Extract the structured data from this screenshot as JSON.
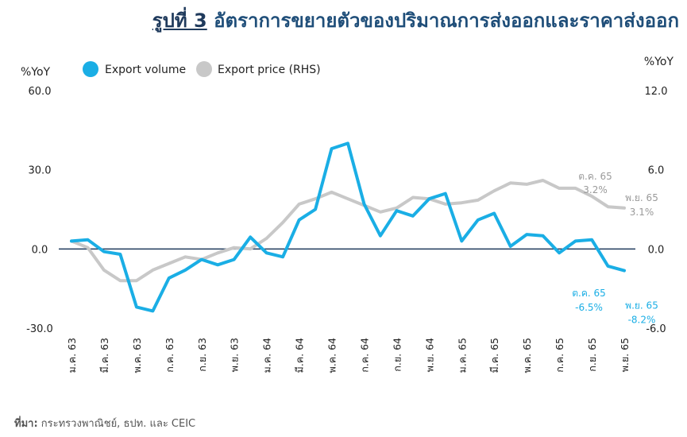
{
  "title": {
    "prefix": "รูปที่ 3",
    "text": "อัตราการขยายตัวของปริมาณการส่งออกและราคาส่งออก"
  },
  "source": {
    "label": "ที่มา:",
    "text": "กระทรวงพาณิชย์, ธปท. และ CEIC"
  },
  "colors": {
    "volume": "#1aaee5",
    "price": "#c8c8c8",
    "zero_line": "#1f3a5c",
    "volume_label": "#1aaee5",
    "price_label": "#9a9a9a"
  },
  "chart_data": {
    "type": "line",
    "y_left_label": "%YoY",
    "y_right_label": "%YoY",
    "y_left_range": [
      -30,
      60
    ],
    "y_right_range": [
      -6,
      12
    ],
    "y_left_ticks": [
      "60.0",
      "30.0",
      "0.0",
      "-30.0"
    ],
    "y_right_ticks": [
      "12.0",
      "6.0",
      "0.0",
      "-6.0"
    ],
    "x_tick_labels": [
      "ม.ค. 63",
      "มี.ค. 63",
      "พ.ค. 63",
      "ก.ค. 63",
      "ก.ย. 63",
      "พ.ย. 63",
      "ม.ค. 64",
      "มี.ค. 64",
      "พ.ค. 64",
      "ก.ค. 64",
      "ก.ย. 64",
      "พ.ย. 64",
      "ม.ค. 65",
      "มี.ค. 65",
      "พ.ค. 65",
      "ก.ค. 65",
      "ก.ย. 65",
      "พ.ย. 65"
    ],
    "legend_position": "top-left",
    "series": [
      {
        "name": "Export volume",
        "axis": "left",
        "values": [
          3.0,
          3.5,
          -1.0,
          -2.0,
          -22.0,
          -23.5,
          -11.0,
          -8.0,
          -4.0,
          -6.0,
          -4.0,
          4.5,
          -1.5,
          -3.0,
          11.0,
          15.0,
          38.0,
          40.0,
          17.0,
          5.0,
          14.5,
          12.5,
          19.0,
          21.0,
          3.0,
          11.0,
          13.5,
          1.0,
          5.5,
          5.0,
          -1.5,
          3.0,
          3.5,
          -6.5,
          -8.2
        ]
      },
      {
        "name": "Export price (RHS)",
        "axis": "right",
        "values": [
          0.6,
          0.1,
          -1.6,
          -2.4,
          -2.4,
          -1.6,
          -1.1,
          -0.6,
          -0.8,
          -0.3,
          0.1,
          0.0,
          0.8,
          2.0,
          3.4,
          3.8,
          4.3,
          3.8,
          3.3,
          2.8,
          3.1,
          3.9,
          3.8,
          3.4,
          3.5,
          3.7,
          4.4,
          5.0,
          4.9,
          5.2,
          4.6,
          4.6,
          4.0,
          3.2,
          3.1
        ]
      }
    ],
    "annotations": [
      {
        "series": "Export volume",
        "index": 33,
        "label": "ต.ค. 65",
        "value": "-6.5%"
      },
      {
        "series": "Export volume",
        "index": 34,
        "label": "พ.ย. 65",
        "value": "-8.2%"
      },
      {
        "series": "Export price (RHS)",
        "index": 33,
        "label": "ต.ค. 65",
        "value": "3.2%"
      },
      {
        "series": "Export price (RHS)",
        "index": 34,
        "label": "พ.ย. 65",
        "value": "3.1%"
      }
    ]
  }
}
